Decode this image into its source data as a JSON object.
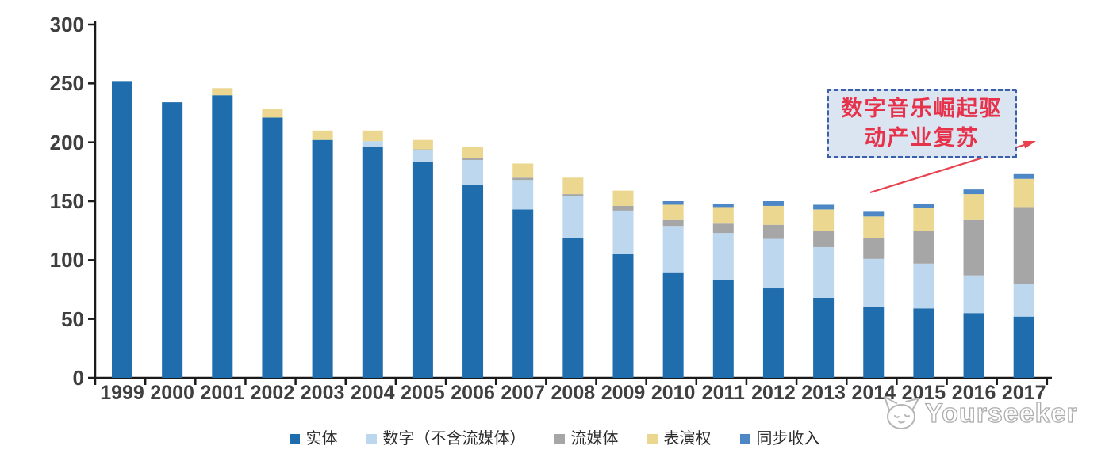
{
  "figure": {
    "watermark_text": "Yourseeker",
    "annotation": {
      "line1": "数字音乐崛起驱",
      "line2": "动产业复苏",
      "text_color": "#e6324b",
      "box_fill": "#dbe5f1",
      "box_border": "#3b5fa8",
      "arrow_color": "#e8424f"
    }
  },
  "chart_data": {
    "type": "bar",
    "stacked": true,
    "title": "",
    "xlabel": "",
    "ylabel": "",
    "categories": [
      "1999",
      "2000",
      "2001",
      "2002",
      "2003",
      "2004",
      "2005",
      "2006",
      "2007",
      "2008",
      "2009",
      "2010",
      "2011",
      "2012",
      "2013",
      "2014",
      "2015",
      "2016",
      "2017"
    ],
    "series": [
      {
        "name": "实体",
        "color": "#1f6dad",
        "values": [
          252,
          234,
          240,
          221,
          202,
          196,
          183,
          164,
          143,
          119,
          105,
          89,
          83,
          76,
          68,
          60,
          59,
          55,
          52
        ]
      },
      {
        "name": "数字（不含流媒体）",
        "color": "#bdd7ee",
        "values": [
          0,
          0,
          0,
          0,
          0,
          5,
          10,
          21,
          25,
          35,
          37,
          40,
          40,
          42,
          43,
          41,
          38,
          32,
          28
        ]
      },
      {
        "name": "流媒体",
        "color": "#a6a6a6",
        "values": [
          0,
          0,
          0,
          0,
          0,
          0,
          1,
          2,
          2,
          2,
          4,
          5,
          8,
          12,
          14,
          18,
          28,
          47,
          65
        ]
      },
      {
        "name": "表演权",
        "color": "#ebd78f",
        "values": [
          0,
          0,
          6,
          7,
          8,
          9,
          8,
          9,
          12,
          14,
          13,
          13,
          14,
          16,
          18,
          18,
          19,
          22,
          24
        ]
      },
      {
        "name": "同步收入",
        "color": "#4e87c6",
        "values": [
          0,
          0,
          0,
          0,
          0,
          0,
          0,
          0,
          0,
          0,
          0,
          3,
          3,
          4,
          4,
          4,
          4,
          4,
          4
        ]
      }
    ],
    "totals": [
      252,
      234,
      246,
      228,
      210,
      210,
      202,
      196,
      182,
      170,
      159,
      150,
      148,
      150,
      147,
      141,
      148,
      160,
      173
    ],
    "ylim": [
      0,
      300
    ],
    "y_ticks": [
      0,
      50,
      100,
      150,
      200,
      250,
      300
    ],
    "grid": false,
    "legend_position": "bottom",
    "axis_color": "#1a1a1a"
  }
}
